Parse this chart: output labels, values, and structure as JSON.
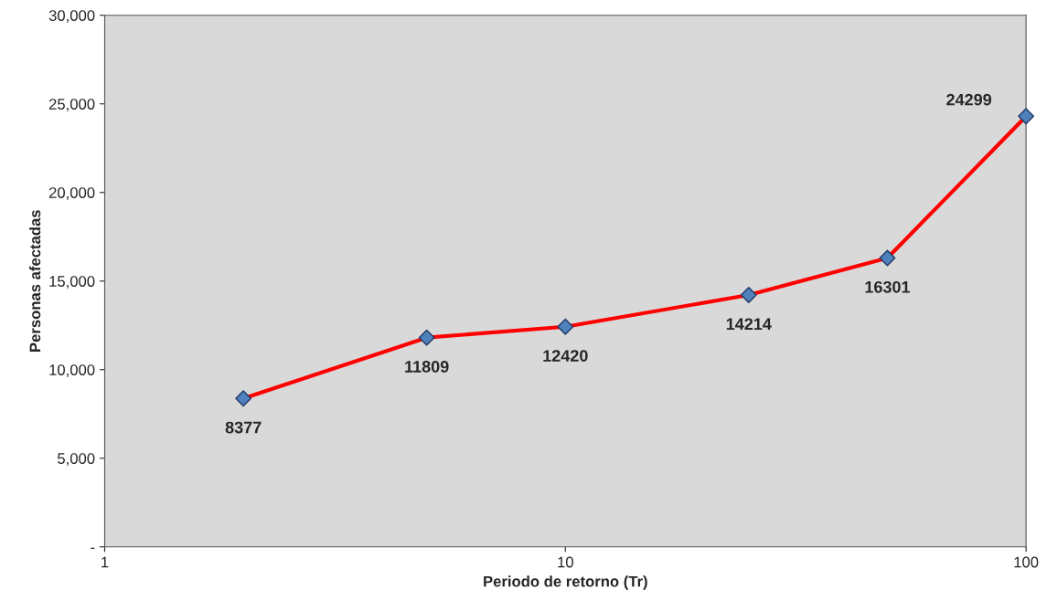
{
  "chart_data": {
    "type": "line",
    "xlabel": "Periodo de retorno (Tr)",
    "ylabel": "Personas afectadas",
    "x": [
      2,
      5,
      10,
      25,
      50,
      100
    ],
    "series": [
      {
        "color": "#ff0000",
        "values": [
          8377,
          11809,
          12420,
          14214,
          16301,
          24299
        ]
      }
    ],
    "marker": "diamond",
    "line_style": "solid",
    "log": "x",
    "xlim": [
      1,
      100
    ],
    "xticks": [
      1,
      10,
      100
    ],
    "ylim": [
      0,
      30000
    ],
    "yticks": [
      {
        "value": 0,
        "label": "-"
      },
      {
        "value": 5000,
        "label": "5,000"
      },
      {
        "value": 10000,
        "label": "10,000"
      },
      {
        "value": 15000,
        "label": "15,000"
      },
      {
        "value": 20000,
        "label": "20,000"
      },
      {
        "value": 25000,
        "label": "25,000"
      },
      {
        "value": 30000,
        "label": "30,000"
      }
    ],
    "data_labels": true,
    "grid": false
  }
}
